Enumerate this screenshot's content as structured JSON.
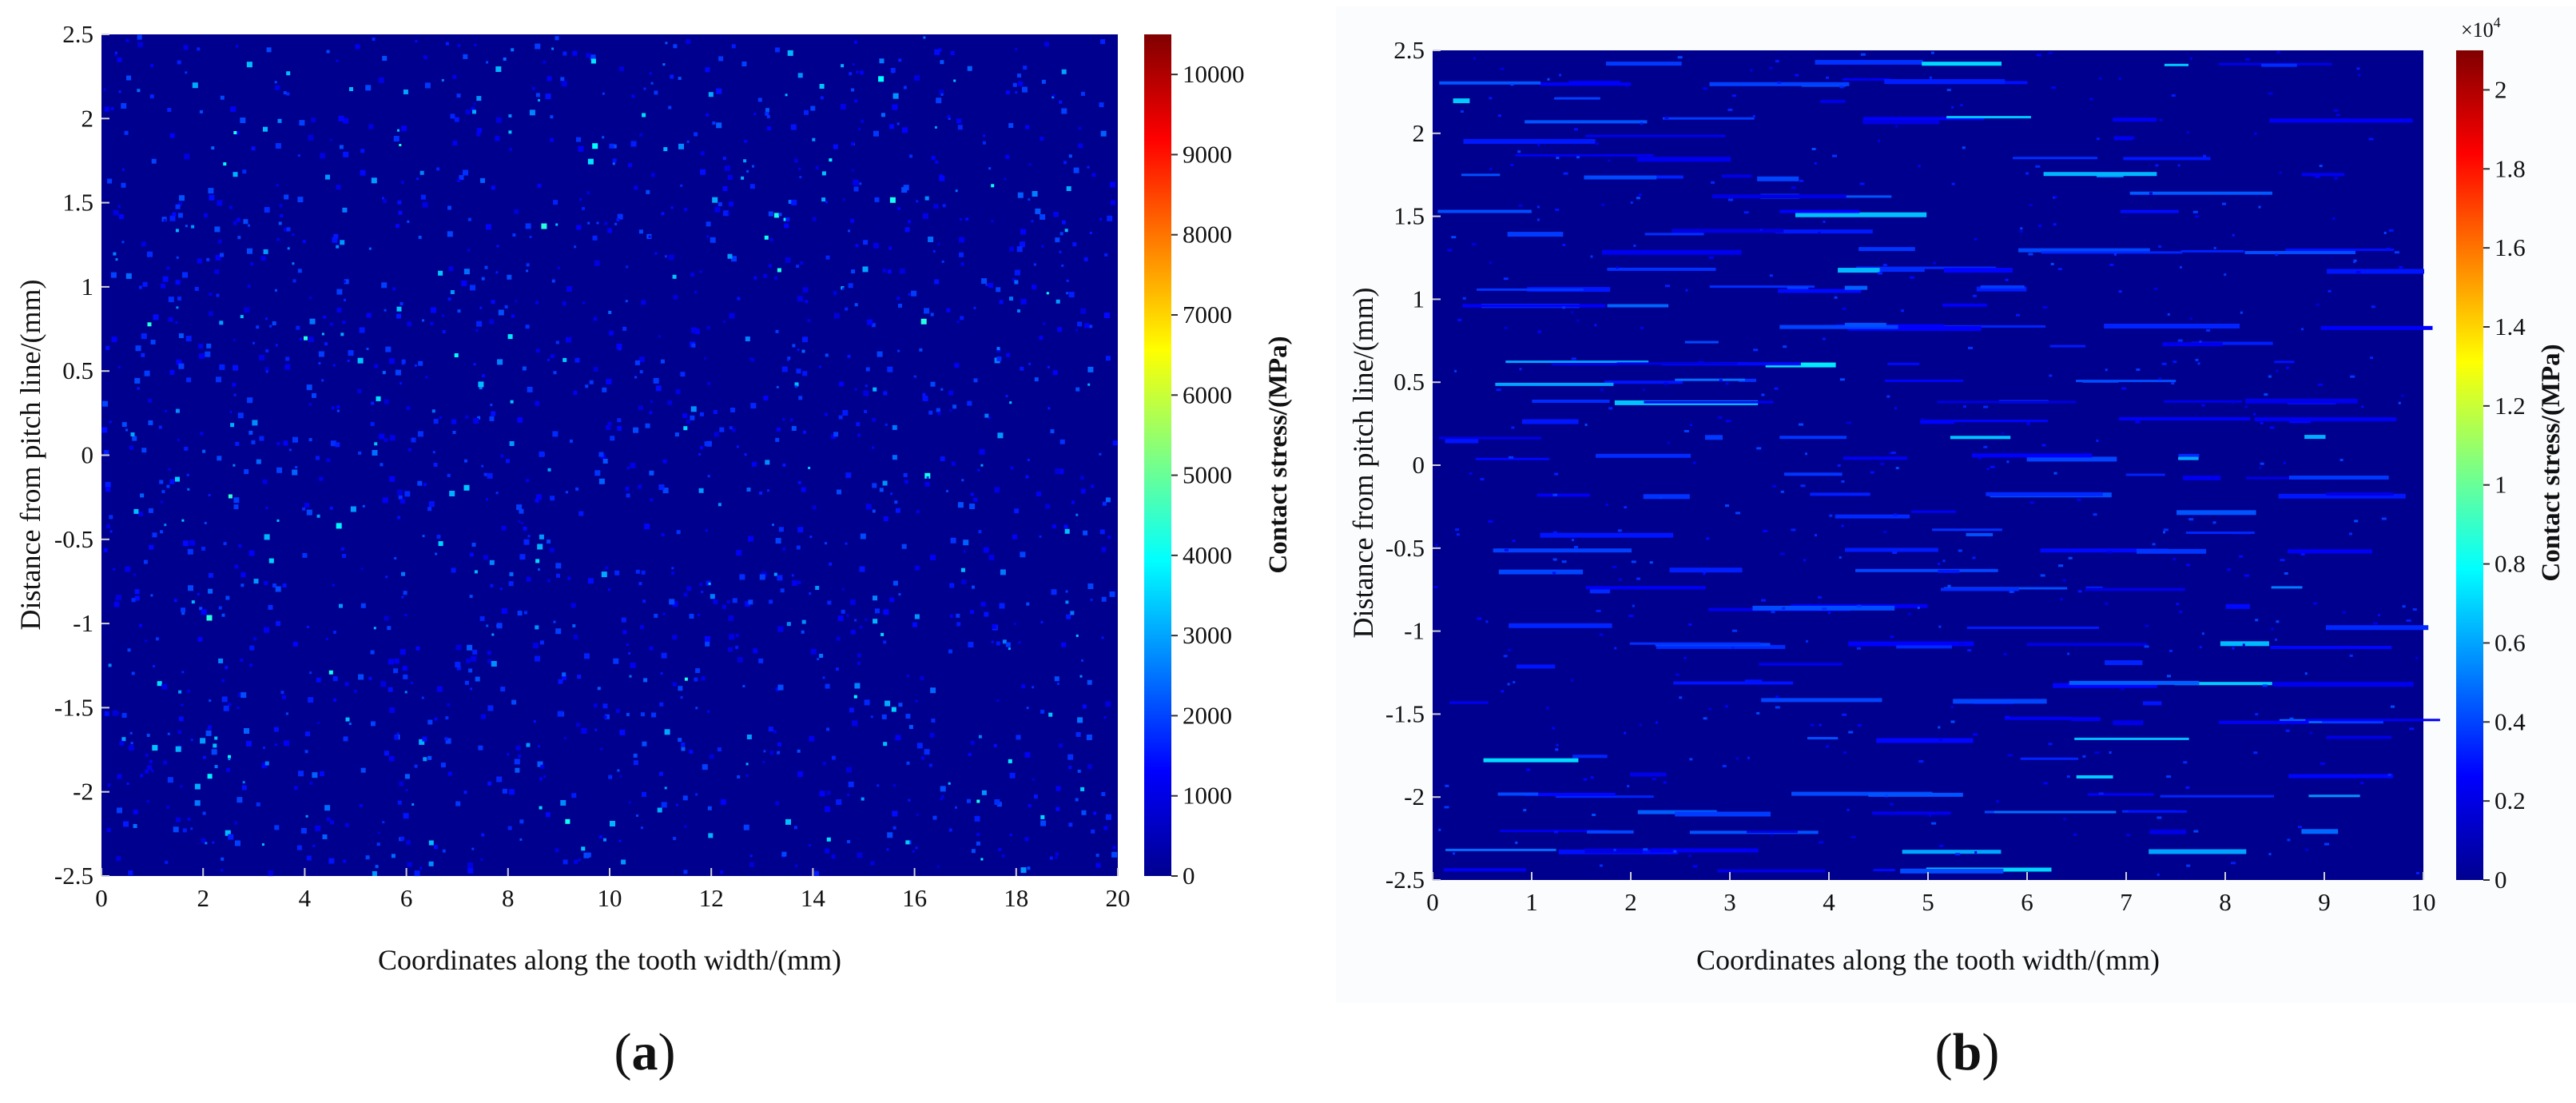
{
  "colors": {
    "background": "#00008f",
    "colormap": [
      "#00008f",
      "#0000ff",
      "#0080ff",
      "#00ffff",
      "#80ff80",
      "#ffff00",
      "#ff8000",
      "#ff0000",
      "#800000"
    ]
  },
  "chart_data": [
    {
      "type": "heatmap",
      "panel_label": "a",
      "xlabel": "Coordinates along the tooth width/(mm)",
      "ylabel": "Distance from pitch line/(mm)",
      "xlim": [
        0,
        20
      ],
      "ylim": [
        -2.5,
        2.5
      ],
      "x_ticks": [
        "0",
        "2",
        "4",
        "6",
        "8",
        "10",
        "12",
        "14",
        "16",
        "18",
        "20"
      ],
      "y_ticks": [
        "-2.5",
        "-2",
        "-1.5",
        "-1",
        "-0.5",
        "0",
        "0.5",
        "1",
        "1.5",
        "2",
        "2.5"
      ],
      "colorbar": {
        "label": "Contact stress/(MPa)",
        "min": 0,
        "max": 10500,
        "multiplier": "",
        "ticks": [
          "0",
          "1000",
          "2000",
          "3000",
          "4000",
          "5000",
          "6000",
          "7000",
          "8000",
          "9000",
          "10000"
        ]
      },
      "grid": false,
      "pattern": "scattered isolated contact spots; values mostly below 4000 MPa"
    },
    {
      "type": "heatmap",
      "panel_label": "b",
      "xlabel": "Coordinates along the tooth width/(mm)",
      "ylabel": "Distance from pitch line/(mm)",
      "xlim": [
        0,
        10
      ],
      "ylim": [
        -2.5,
        2.5
      ],
      "x_ticks": [
        "0",
        "1",
        "2",
        "3",
        "4",
        "5",
        "6",
        "7",
        "8",
        "9",
        "10"
      ],
      "y_ticks": [
        "-2.5",
        "-2",
        "-1.5",
        "-1",
        "-0.5",
        "0",
        "0.5",
        "1",
        "1.5",
        "2",
        "2.5"
      ],
      "colorbar": {
        "label": "Contact stress/(MPa)",
        "min": 0,
        "max": 2.1,
        "multiplier": "×10",
        "multiplier_exp": "4",
        "ticks": [
          "0",
          "0.2",
          "0.4",
          "0.6",
          "0.8",
          "1",
          "1.2",
          "1.4",
          "1.6",
          "1.8",
          "2"
        ]
      },
      "grid": false,
      "pattern": "horizontal streaks of contact along the tooth width; values mostly below 0.8 ×10^4 MPa"
    }
  ]
}
